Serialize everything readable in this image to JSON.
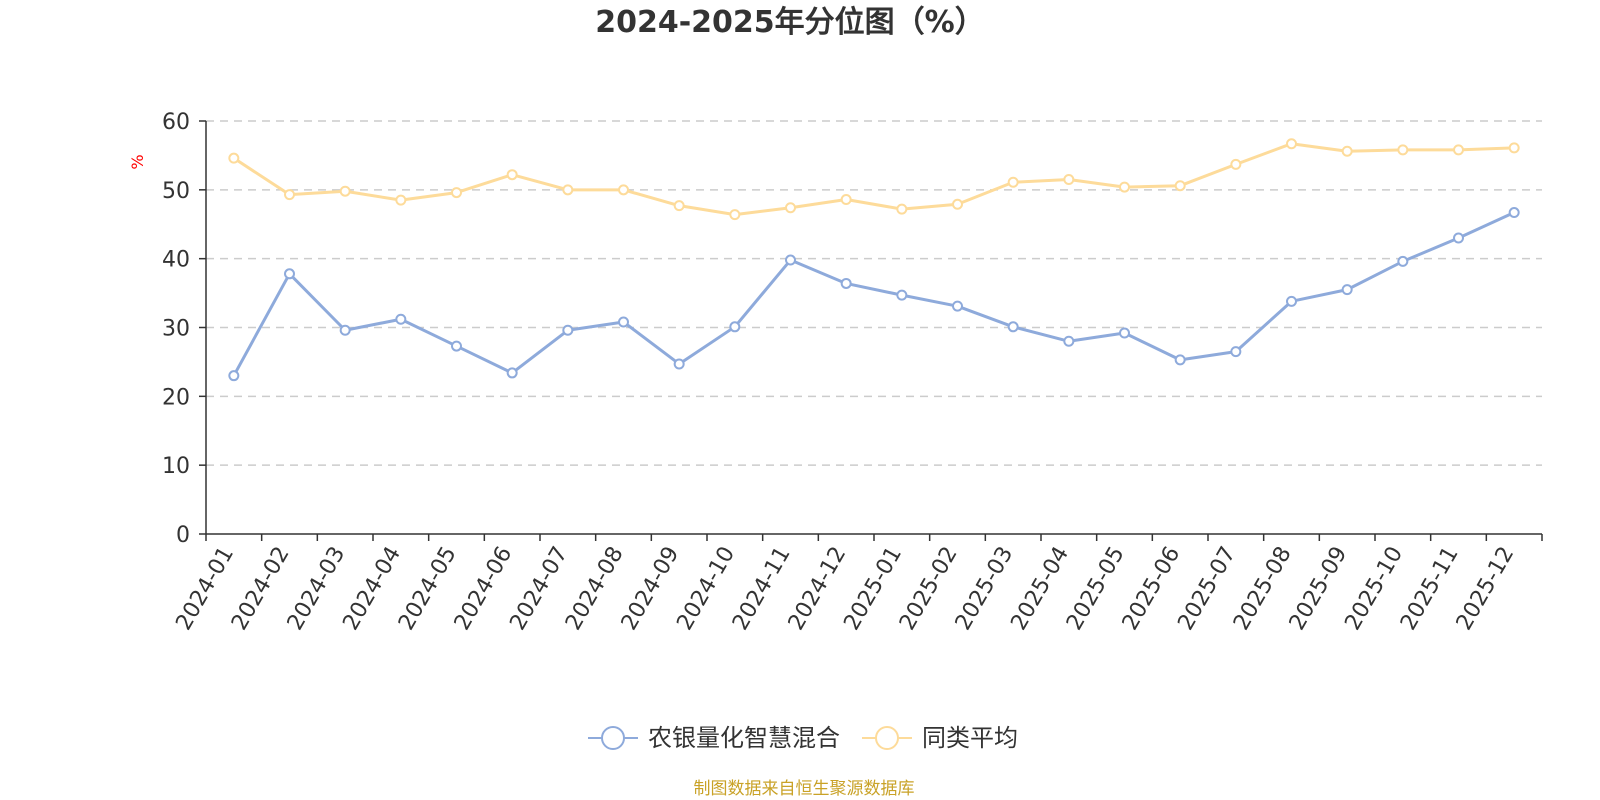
{
  "chart_data": {
    "type": "line",
    "title": "2024-2025年分位图（%）",
    "ylabel": "%",
    "ylim": [
      0,
      60
    ],
    "yticks": [
      0,
      10,
      20,
      30,
      40,
      50,
      60
    ],
    "grid": true,
    "legend_position": "bottom-center",
    "categories": [
      "2024-01",
      "2024-02",
      "2024-03",
      "2024-04",
      "2024-05",
      "2024-06",
      "2024-07",
      "2024-08",
      "2024-09",
      "2024-10",
      "2024-11",
      "2024-12",
      "2025-01",
      "2025-02",
      "2025-03",
      "2025-04",
      "2025-05",
      "2025-06",
      "2025-07",
      "2025-08",
      "2025-09",
      "2025-10",
      "2025-11",
      "2025-12"
    ],
    "series": [
      {
        "name": "农银量化智慧混合",
        "color": "#8eaadb",
        "values": [
          23.0,
          37.8,
          29.6,
          31.2,
          27.3,
          23.4,
          29.6,
          30.8,
          24.7,
          30.1,
          39.8,
          36.4,
          34.7,
          33.1,
          30.1,
          28.0,
          29.2,
          25.3,
          26.5,
          33.8,
          35.5,
          39.6,
          43.0,
          46.7
        ]
      },
      {
        "name": "同类平均",
        "color": "#fddb9a",
        "values": [
          54.6,
          49.3,
          49.8,
          48.5,
          49.6,
          52.2,
          50.0,
          50.0,
          47.7,
          46.4,
          47.4,
          48.6,
          47.2,
          47.9,
          51.1,
          51.5,
          50.4,
          50.6,
          53.7,
          56.7,
          55.6,
          55.8,
          55.8,
          56.1
        ]
      }
    ]
  },
  "source_text": "制图数据来自恒生聚源数据库",
  "colors": {
    "axis": "#333333",
    "grid": "#cccccc",
    "unit": "#ff0000",
    "source": "#c9a227"
  }
}
